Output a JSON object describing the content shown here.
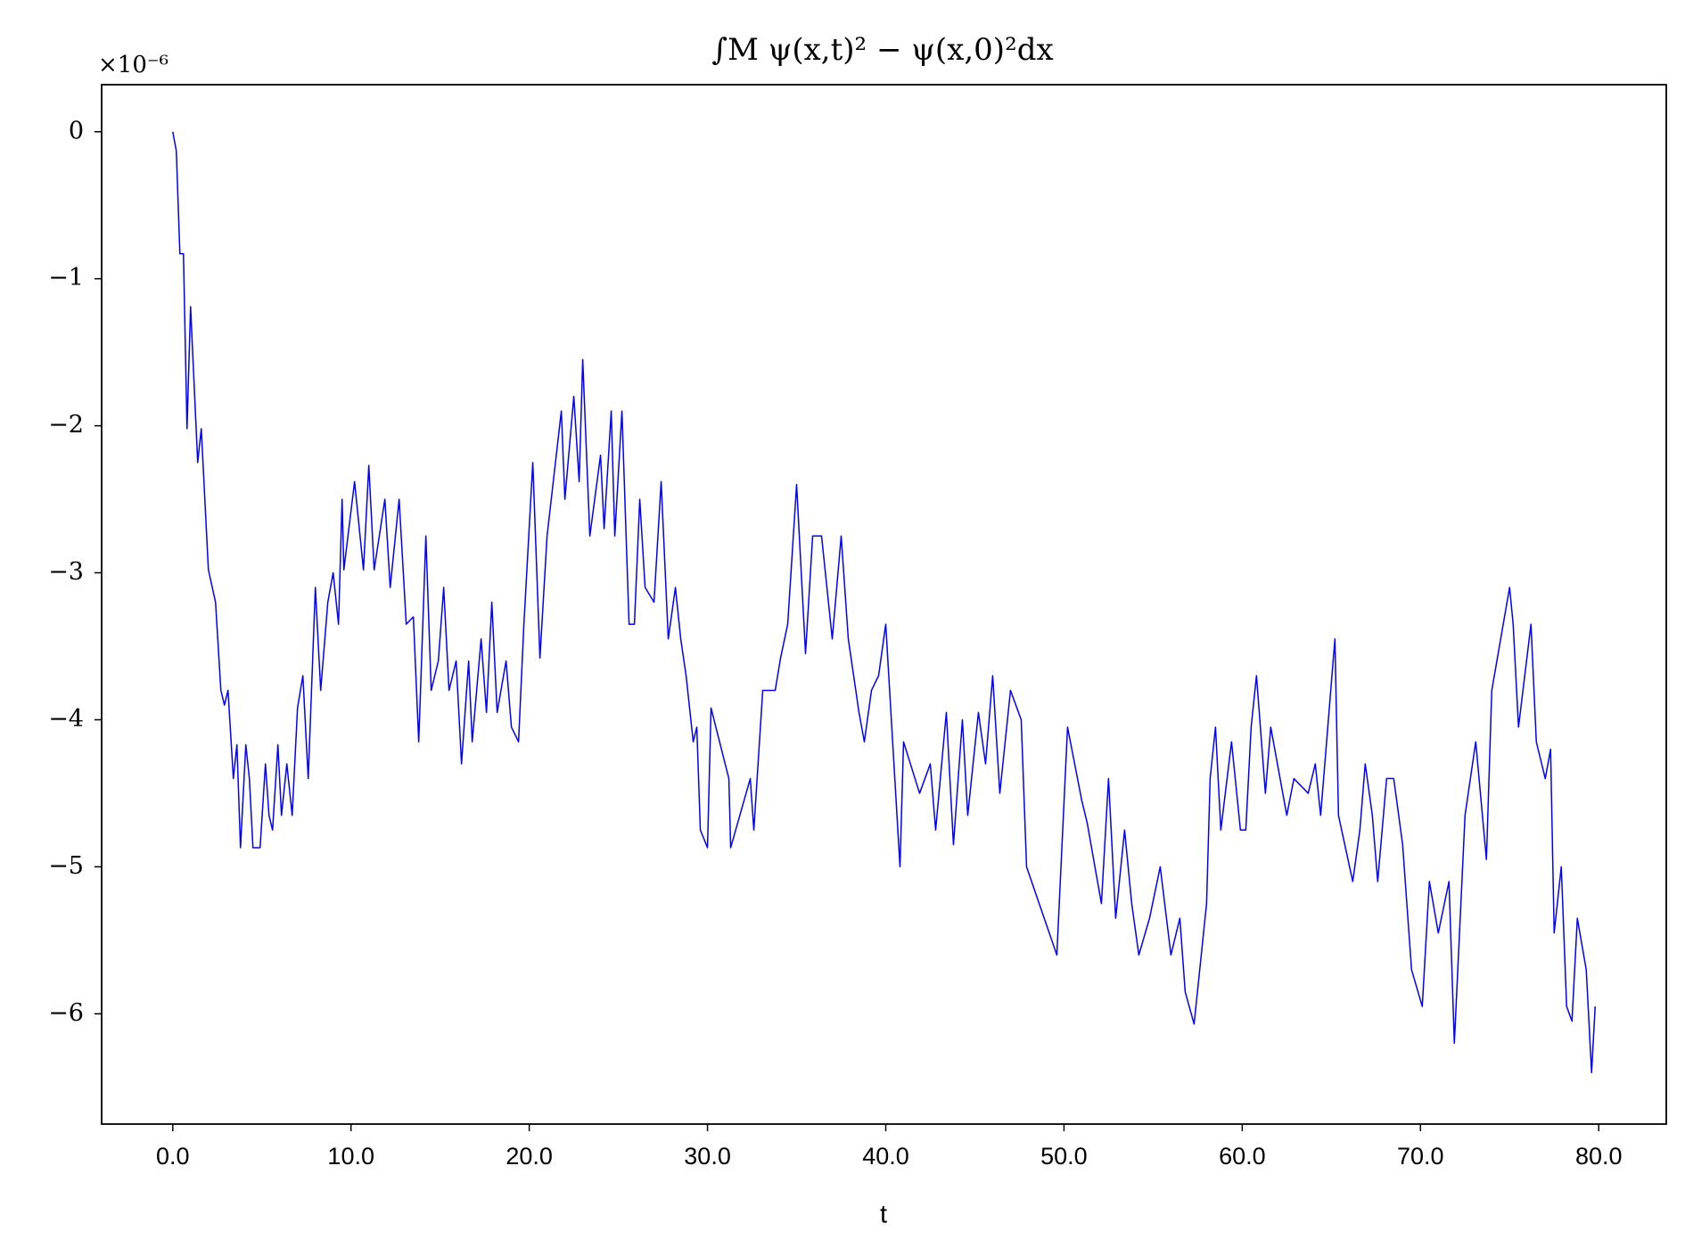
{
  "chart_data": {
    "type": "line",
    "title": "∫M ψ(x,t)² − ψ(x,0)²dx",
    "x_label": "t",
    "offset_label": "×10⁻⁶",
    "color": "#0000ff",
    "x": [
      0,
      0.2,
      0.4,
      0.6,
      0.8,
      1.0,
      1.4,
      1.6,
      2.0,
      2.4,
      2.7,
      2.9,
      3.1,
      3.4,
      3.6,
      3.8,
      4.1,
      4.3,
      4.5,
      4.9,
      5.2,
      5.4,
      5.6,
      5.9,
      6.1,
      6.4,
      6.7,
      7.0,
      7.3,
      7.6,
      8.0,
      8.3,
      8.7,
      9.0,
      9.3,
      9.5,
      9.6,
      10.2,
      10.7,
      11.0,
      11.3,
      11.9,
      12.2,
      12.7,
      13.1,
      13.5,
      13.8,
      14.2,
      14.5,
      14.9,
      15.2,
      15.5,
      15.9,
      16.2,
      16.6,
      16.8,
      17.3,
      17.6,
      17.9,
      18.2,
      18.7,
      19.0,
      19.4,
      19.7,
      20.2,
      20.6,
      21.0,
      21.8,
      22.0,
      22.5,
      22.8,
      23.0,
      23.4,
      24.0,
      24.2,
      24.6,
      24.8,
      25.2,
      25.6,
      25.9,
      26.2,
      26.5,
      27.0,
      27.4,
      27.8,
      28.2,
      28.5,
      28.8,
      29.2,
      29.4,
      29.6,
      30.0,
      30.2,
      31.2,
      31.3,
      32.4,
      32.6,
      33.1,
      33.8,
      34.1,
      34.5,
      35.0,
      35.5,
      35.9,
      36.4,
      37.0,
      37.5,
      37.9,
      38.5,
      38.8,
      39.2,
      39.6,
      40.0,
      40.8,
      41.0,
      41.9,
      42.5,
      42.8,
      43.4,
      43.8,
      44.3,
      44.6,
      45.2,
      45.6,
      46.0,
      46.4,
      47.0,
      47.6,
      47.9,
      49.6,
      50.2,
      51.0,
      51.3,
      52.1,
      52.5,
      52.9,
      53.4,
      53.8,
      54.2,
      54.8,
      55.4,
      56.0,
      56.5,
      56.8,
      57.3,
      58.0,
      58.2,
      58.5,
      58.8,
      59.4,
      59.9,
      60.2,
      60.5,
      60.8,
      61.3,
      61.6,
      62.5,
      62.9,
      63.7,
      64.1,
      64.4,
      65.2,
      65.4,
      66.2,
      66.6,
      66.9,
      67.3,
      67.6,
      68.1,
      68.5,
      69.0,
      69.5,
      70.1,
      70.5,
      71.0,
      71.6,
      71.9,
      72.5,
      73.1,
      73.7,
      74.0,
      75.0,
      75.2,
      75.5,
      76.2,
      76.5,
      77.0,
      77.3,
      77.5,
      77.9,
      78.2,
      78.5,
      78.8,
      79.3,
      79.6,
      79.8
    ],
    "values": [
      0,
      -0.13,
      -0.83,
      -0.83,
      -2.02,
      -1.19,
      -2.25,
      -2.02,
      -2.98,
      -3.2,
      -3.8,
      -3.9,
      -3.8,
      -4.4,
      -4.17,
      -4.87,
      -4.17,
      -4.4,
      -4.87,
      -4.87,
      -4.3,
      -4.65,
      -4.75,
      -4.17,
      -4.65,
      -4.3,
      -4.65,
      -3.92,
      -3.7,
      -4.4,
      -3.1,
      -3.8,
      -3.2,
      -3.0,
      -3.35,
      -2.5,
      -2.98,
      -2.38,
      -2.98,
      -2.27,
      -2.98,
      -2.5,
      -3.1,
      -2.5,
      -3.35,
      -3.3,
      -4.15,
      -2.75,
      -3.8,
      -3.6,
      -3.1,
      -3.8,
      -3.6,
      -4.3,
      -3.6,
      -4.15,
      -3.45,
      -3.95,
      -3.2,
      -3.95,
      -3.6,
      -4.05,
      -4.15,
      -3.35,
      -2.25,
      -3.58,
      -2.75,
      -1.9,
      -2.5,
      -1.8,
      -2.38,
      -1.55,
      -2.75,
      -2.2,
      -2.7,
      -1.9,
      -2.75,
      -1.9,
      -3.35,
      -3.35,
      -2.5,
      -3.1,
      -3.2,
      -2.38,
      -3.45,
      -3.1,
      -3.45,
      -3.7,
      -4.15,
      -4.05,
      -4.75,
      -4.87,
      -3.92,
      -4.4,
      -4.87,
      -4.4,
      -4.75,
      -3.8,
      -3.8,
      -3.58,
      -3.35,
      -2.4,
      -3.55,
      -2.75,
      -2.75,
      -3.45,
      -2.75,
      -3.45,
      -3.95,
      -4.15,
      -3.8,
      -3.7,
      -3.35,
      -5.0,
      -4.15,
      -4.5,
      -4.3,
      -4.75,
      -3.95,
      -4.85,
      -4.0,
      -4.65,
      -3.95,
      -4.3,
      -3.7,
      -4.5,
      -3.8,
      -4.0,
      -5.0,
      -5.6,
      -4.05,
      -4.55,
      -4.7,
      -5.25,
      -4.4,
      -5.35,
      -4.75,
      -5.25,
      -5.6,
      -5.35,
      -5.0,
      -5.6,
      -5.35,
      -5.85,
      -6.07,
      -5.25,
      -4.4,
      -4.05,
      -4.75,
      -4.15,
      -4.75,
      -4.75,
      -4.05,
      -3.7,
      -4.5,
      -4.05,
      -4.65,
      -4.4,
      -4.5,
      -4.3,
      -4.65,
      -3.45,
      -4.65,
      -5.1,
      -4.75,
      -4.3,
      -4.65,
      -5.1,
      -4.4,
      -4.4,
      -4.85,
      -5.7,
      -5.95,
      -5.1,
      -5.45,
      -5.1,
      -6.2,
      -4.65,
      -4.15,
      -4.95,
      -3.8,
      -3.1,
      -3.35,
      -4.05,
      -3.35,
      -4.15,
      -4.4,
      -4.2,
      -5.45,
      -5.0,
      -5.95,
      -6.05,
      -5.35,
      -5.7,
      -6.4,
      -5.95
    ],
    "xlim": [
      -3.99,
      83.79
    ],
    "ylim": [
      -6.75,
      0.32
    ],
    "xticks": [
      {
        "value": 0,
        "label": "0.0"
      },
      {
        "value": 10,
        "label": "10.0"
      },
      {
        "value": 20,
        "label": "20.0"
      },
      {
        "value": 30,
        "label": "30.0"
      },
      {
        "value": 40,
        "label": "40.0"
      },
      {
        "value": 50,
        "label": "50.0"
      },
      {
        "value": 60,
        "label": "60.0"
      },
      {
        "value": 70,
        "label": "70.0"
      },
      {
        "value": 80,
        "label": "80.0"
      }
    ],
    "yticks": [
      0,
      {
        "value": -1,
        "label": "−1"
      },
      {
        "value": -2,
        "label": "−2"
      },
      {
        "value": -3,
        "label": "−3"
      },
      {
        "value": -4,
        "label": "−4"
      },
      {
        "value": -5,
        "label": "−5"
      },
      {
        "value": -6,
        "label": "−6"
      }
    ],
    "grid": false
  }
}
